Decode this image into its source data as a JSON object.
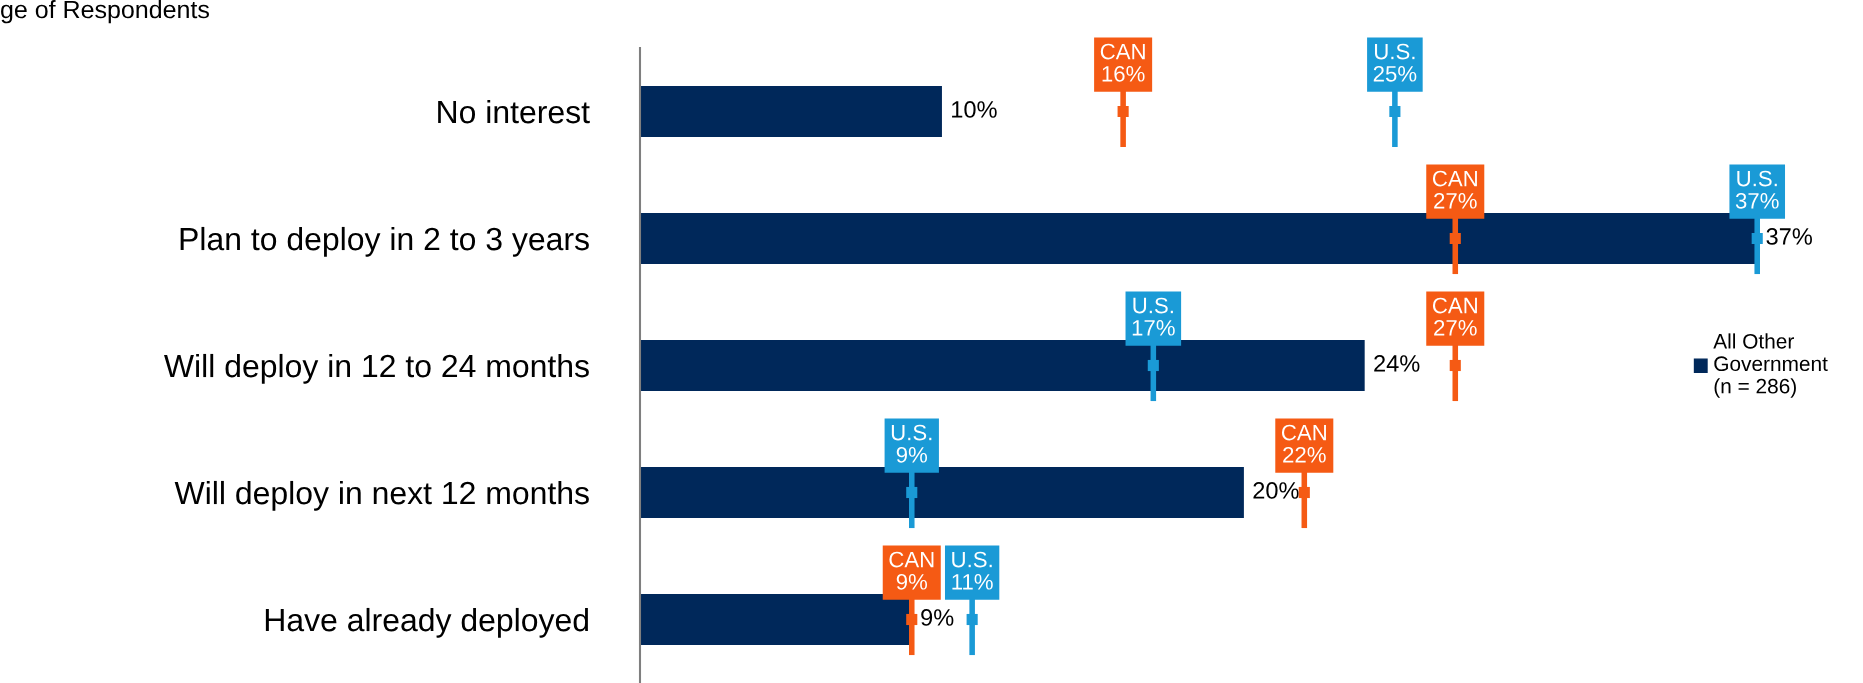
{
  "chart_data": {
    "type": "bar",
    "orientation": "horizontal",
    "legend": "right",
    "annotations": [
      "ge of Respondents"
    ],
    "categories": [
      "No interest",
      "Plan to deploy in 2 to 3 years",
      "Will deploy in 12 to 24 months",
      "Will deploy in next 12 months",
      "Have already deployed"
    ],
    "series": [
      {
        "name": "All Other\nGovernment\n(n = 286)",
        "type": "bar",
        "color": "#00285a",
        "values": [
          10,
          37,
          24,
          20,
          9
        ],
        "value_labels": [
          "10%",
          "37%",
          "24%",
          "20%",
          "9%"
        ]
      },
      {
        "name": "CAN",
        "type": "scatter",
        "color": "#f55a14",
        "values": [
          16,
          27,
          27,
          22,
          9
        ],
        "value_labels": [
          "16%",
          "27%",
          "27%",
          "22%",
          "9%"
        ]
      },
      {
        "name": "U.S.",
        "type": "scatter",
        "color": "#1a9ad6",
        "values": [
          25,
          37,
          17,
          9,
          11
        ],
        "value_labels": [
          "25%",
          "37%",
          "17%",
          "9%",
          "11%"
        ]
      }
    ]
  }
}
